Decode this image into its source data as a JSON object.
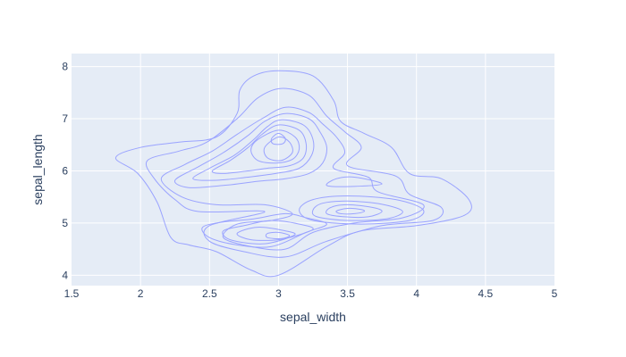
{
  "chart_data": {
    "type": "contour",
    "title": "",
    "xlabel": "sepal_width",
    "ylabel": "sepal_length",
    "xlim": [
      1.5,
      5.0
    ],
    "ylim": [
      3.8,
      8.25
    ],
    "x_ticks": [
      1.5,
      2,
      2.5,
      3,
      3.5,
      4,
      4.5,
      5
    ],
    "x_tick_labels": [
      "1.5",
      "2",
      "2.5",
      "3",
      "3.5",
      "4",
      "4.5",
      "5"
    ],
    "y_ticks": [
      4,
      5,
      6,
      7,
      8
    ],
    "y_tick_labels": [
      "4",
      "5",
      "6",
      "7",
      "8"
    ],
    "grid": true,
    "legend": "none",
    "colors": {
      "plot_bg": "#e5ecf6",
      "grid": "#ffffff",
      "line": "#9aa3ff",
      "text": "#2a3f5f"
    },
    "contours": [
      {
        "level": 1,
        "points": [
          [
            3.0,
            7.92
          ],
          [
            3.25,
            7.82
          ],
          [
            3.4,
            7.35
          ],
          [
            3.45,
            6.95
          ],
          [
            3.62,
            6.72
          ],
          [
            3.82,
            6.45
          ],
          [
            3.95,
            5.95
          ],
          [
            4.18,
            5.85
          ],
          [
            4.38,
            5.45
          ],
          [
            4.35,
            5.15
          ],
          [
            4.0,
            4.95
          ],
          [
            3.6,
            4.85
          ],
          [
            3.35,
            4.55
          ],
          [
            3.0,
            4.0
          ],
          [
            2.8,
            4.1
          ],
          [
            2.55,
            4.45
          ],
          [
            2.35,
            4.58
          ],
          [
            2.22,
            4.72
          ],
          [
            2.12,
            5.4
          ],
          [
            1.98,
            5.95
          ],
          [
            1.82,
            6.25
          ],
          [
            2.0,
            6.45
          ],
          [
            2.28,
            6.55
          ],
          [
            2.55,
            6.65
          ],
          [
            2.7,
            7.1
          ],
          [
            2.72,
            7.55
          ],
          [
            2.82,
            7.82
          ],
          [
            3.0,
            7.92
          ]
        ]
      },
      {
        "level": 2,
        "points": [
          [
            3.02,
            7.58
          ],
          [
            3.22,
            7.45
          ],
          [
            3.35,
            7.05
          ],
          [
            3.48,
            6.75
          ],
          [
            3.6,
            6.45
          ],
          [
            3.5,
            6.1
          ],
          [
            3.85,
            5.9
          ],
          [
            3.95,
            5.55
          ],
          [
            4.18,
            5.3
          ],
          [
            4.12,
            5.05
          ],
          [
            3.75,
            4.95
          ],
          [
            3.35,
            4.65
          ],
          [
            3.05,
            4.35
          ],
          [
            2.75,
            4.45
          ],
          [
            2.5,
            4.65
          ],
          [
            2.5,
            4.95
          ],
          [
            2.9,
            5.22
          ],
          [
            2.42,
            5.22
          ],
          [
            2.25,
            5.45
          ],
          [
            2.1,
            5.85
          ],
          [
            2.05,
            6.2
          ],
          [
            2.28,
            6.38
          ],
          [
            2.48,
            6.55
          ],
          [
            2.7,
            7.0
          ],
          [
            2.85,
            7.4
          ],
          [
            3.02,
            7.58
          ]
        ]
      },
      {
        "level": 3,
        "points": [
          [
            3.05,
            7.22
          ],
          [
            3.22,
            7.12
          ],
          [
            3.32,
            6.9
          ],
          [
            3.42,
            6.65
          ],
          [
            3.48,
            6.35
          ],
          [
            3.4,
            6.05
          ],
          [
            3.65,
            5.88
          ],
          [
            3.72,
            5.6
          ],
          [
            4.05,
            5.35
          ],
          [
            3.9,
            5.1
          ],
          [
            3.55,
            5.0
          ],
          [
            3.25,
            4.82
          ],
          [
            3.05,
            4.5
          ],
          [
            2.8,
            4.55
          ],
          [
            2.6,
            4.72
          ],
          [
            2.7,
            4.98
          ],
          [
            2.95,
            5.05
          ],
          [
            3.1,
            5.18
          ],
          [
            2.9,
            5.35
          ],
          [
            2.55,
            5.35
          ],
          [
            2.3,
            5.5
          ],
          [
            2.15,
            5.85
          ],
          [
            2.32,
            6.12
          ],
          [
            2.52,
            6.38
          ],
          [
            2.7,
            6.7
          ],
          [
            2.88,
            7.0
          ],
          [
            3.05,
            7.22
          ]
        ]
      },
      {
        "level": 4,
        "points": [
          [
            3.05,
            7.1
          ],
          [
            3.22,
            7.0
          ],
          [
            3.3,
            6.75
          ],
          [
            3.35,
            6.45
          ],
          [
            3.32,
            6.15
          ],
          [
            3.22,
            5.95
          ],
          [
            3.05,
            5.85
          ],
          [
            2.85,
            5.8
          ],
          [
            2.6,
            5.72
          ],
          [
            2.35,
            5.68
          ],
          [
            2.25,
            5.82
          ],
          [
            2.42,
            6.08
          ],
          [
            2.6,
            6.35
          ],
          [
            2.78,
            6.68
          ],
          [
            2.9,
            6.95
          ],
          [
            3.05,
            7.1
          ]
        ]
      },
      {
        "level": 5,
        "points": [
          [
            3.02,
            6.98
          ],
          [
            3.18,
            6.88
          ],
          [
            3.25,
            6.6
          ],
          [
            3.24,
            6.3
          ],
          [
            3.15,
            6.05
          ],
          [
            2.98,
            5.95
          ],
          [
            2.78,
            5.88
          ],
          [
            2.55,
            5.82
          ],
          [
            2.38,
            5.85
          ],
          [
            2.5,
            6.05
          ],
          [
            2.68,
            6.3
          ],
          [
            2.82,
            6.6
          ],
          [
            2.92,
            6.85
          ],
          [
            3.02,
            6.98
          ]
        ]
      },
      {
        "level": 6,
        "points": [
          [
            3.0,
            6.88
          ],
          [
            3.15,
            6.78
          ],
          [
            3.2,
            6.52
          ],
          [
            3.18,
            6.25
          ],
          [
            3.08,
            6.1
          ],
          [
            2.92,
            6.05
          ],
          [
            2.78,
            6.0
          ],
          [
            2.6,
            5.95
          ],
          [
            2.52,
            6.0
          ],
          [
            2.65,
            6.2
          ],
          [
            2.78,
            6.45
          ],
          [
            2.88,
            6.7
          ],
          [
            3.0,
            6.88
          ]
        ]
      },
      {
        "level": 7,
        "points": [
          [
            3.0,
            6.78
          ],
          [
            3.12,
            6.65
          ],
          [
            3.15,
            6.42
          ],
          [
            3.1,
            6.22
          ],
          [
            2.98,
            6.15
          ],
          [
            2.85,
            6.2
          ],
          [
            2.8,
            6.4
          ],
          [
            2.85,
            6.6
          ],
          [
            3.0,
            6.78
          ]
        ]
      },
      {
        "level": 8,
        "points": [
          [
            3.0,
            6.65
          ],
          [
            3.08,
            6.55
          ],
          [
            3.1,
            6.35
          ],
          [
            3.02,
            6.2
          ],
          [
            2.92,
            6.25
          ],
          [
            2.9,
            6.45
          ],
          [
            3.0,
            6.65
          ]
        ]
      },
      {
        "level": 9,
        "points": [
          [
            3.0,
            6.72
          ],
          [
            3.05,
            6.62
          ],
          [
            3.03,
            6.52
          ],
          [
            2.96,
            6.52
          ],
          [
            2.95,
            6.62
          ],
          [
            3.0,
            6.72
          ]
        ]
      },
      {
        "level": 10,
        "points": [
          [
            3.55,
            5.88
          ],
          [
            3.75,
            5.75
          ],
          [
            3.52,
            5.7
          ],
          [
            3.35,
            5.72
          ],
          [
            3.42,
            5.85
          ],
          [
            3.55,
            5.88
          ]
        ]
      },
      {
        "level": 11,
        "points": [
          [
            3.5,
            5.52
          ],
          [
            3.85,
            5.45
          ],
          [
            4.05,
            5.25
          ],
          [
            3.95,
            5.05
          ],
          [
            3.6,
            4.98
          ],
          [
            3.25,
            5.05
          ],
          [
            3.15,
            5.25
          ],
          [
            3.25,
            5.45
          ],
          [
            3.5,
            5.52
          ]
        ]
      },
      {
        "level": 12,
        "points": [
          [
            3.5,
            5.42
          ],
          [
            3.75,
            5.36
          ],
          [
            3.9,
            5.22
          ],
          [
            3.78,
            5.08
          ],
          [
            3.5,
            5.05
          ],
          [
            3.28,
            5.12
          ],
          [
            3.25,
            5.25
          ],
          [
            3.32,
            5.38
          ],
          [
            3.5,
            5.42
          ]
        ]
      },
      {
        "level": 13,
        "points": [
          [
            3.5,
            5.35
          ],
          [
            3.68,
            5.3
          ],
          [
            3.75,
            5.22
          ],
          [
            3.65,
            5.12
          ],
          [
            3.48,
            5.12
          ],
          [
            3.35,
            5.18
          ],
          [
            3.38,
            5.3
          ],
          [
            3.5,
            5.35
          ]
        ]
      },
      {
        "level": 14,
        "points": [
          [
            3.5,
            5.28
          ],
          [
            3.6,
            5.26
          ],
          [
            3.62,
            5.22
          ],
          [
            3.55,
            5.18
          ],
          [
            3.45,
            5.18
          ],
          [
            3.42,
            5.23
          ],
          [
            3.5,
            5.28
          ]
        ]
      },
      {
        "level": 15,
        "points": [
          [
            3.05,
            5.18
          ],
          [
            3.2,
            5.1
          ],
          [
            3.35,
            4.98
          ],
          [
            3.2,
            4.82
          ],
          [
            2.95,
            4.55
          ],
          [
            2.7,
            4.58
          ],
          [
            2.5,
            4.72
          ],
          [
            2.45,
            4.92
          ],
          [
            2.6,
            5.02
          ],
          [
            2.82,
            5.08
          ],
          [
            3.05,
            5.18
          ]
        ]
      },
      {
        "level": 16,
        "points": [
          [
            2.95,
            5.05
          ],
          [
            3.15,
            4.98
          ],
          [
            3.25,
            4.88
          ],
          [
            3.08,
            4.72
          ],
          [
            2.88,
            4.6
          ],
          [
            2.65,
            4.68
          ],
          [
            2.6,
            4.85
          ],
          [
            2.75,
            4.95
          ],
          [
            2.95,
            5.05
          ]
        ]
      },
      {
        "level": 17,
        "points": [
          [
            2.85,
            4.92
          ],
          [
            3.05,
            4.85
          ],
          [
            3.12,
            4.78
          ],
          [
            3.0,
            4.68
          ],
          [
            2.8,
            4.68
          ],
          [
            2.7,
            4.8
          ],
          [
            2.85,
            4.92
          ]
        ]
      },
      {
        "level": 18,
        "points": [
          [
            3.0,
            4.82
          ],
          [
            3.08,
            4.76
          ],
          [
            3.02,
            4.7
          ],
          [
            2.92,
            4.72
          ],
          [
            2.92,
            4.8
          ],
          [
            3.0,
            4.82
          ]
        ]
      }
    ]
  }
}
